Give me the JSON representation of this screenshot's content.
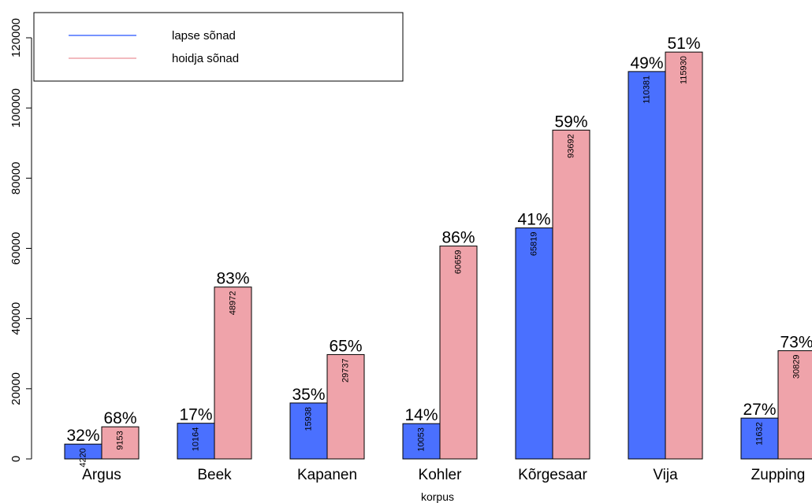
{
  "chart_data": {
    "type": "bar",
    "title": "",
    "xlabel": "korpus",
    "ylabel": "",
    "ylim": [
      0,
      130000
    ],
    "yticks": [
      0,
      20000,
      40000,
      60000,
      80000,
      100000,
      120000
    ],
    "ytick_labels": [
      "0",
      "20000",
      "40000",
      "60000",
      "80000",
      "100000",
      "120000"
    ],
    "grid": false,
    "legend_position": "top-left",
    "categories": [
      "Argus",
      "Beek",
      "Kapanen",
      "Kohler",
      "Kõrgesaar",
      "Vija",
      "Zupping"
    ],
    "series": [
      {
        "name": "lapse sõnad",
        "color": "#4a70ff",
        "values": [
          4220,
          10164,
          15938,
          10053,
          65819,
          110381,
          11632
        ],
        "value_labels": [
          "4220",
          "10164",
          "15938",
          "10053",
          "65819",
          "110381",
          "11632"
        ],
        "percent_labels": [
          "32%",
          "17%",
          "35%",
          "14%",
          "41%",
          "49%",
          "27%"
        ]
      },
      {
        "name": "hoidja sõnad",
        "color": "#efa3aa",
        "values": [
          9153,
          48972,
          29737,
          60659,
          93692,
          115930,
          30829
        ],
        "value_labels": [
          "9153",
          "48972",
          "29737",
          "60659",
          "93692",
          "115930",
          "30829"
        ],
        "percent_labels": [
          "68%",
          "83%",
          "65%",
          "86%",
          "59%",
          "51%",
          "73%"
        ]
      }
    ]
  }
}
